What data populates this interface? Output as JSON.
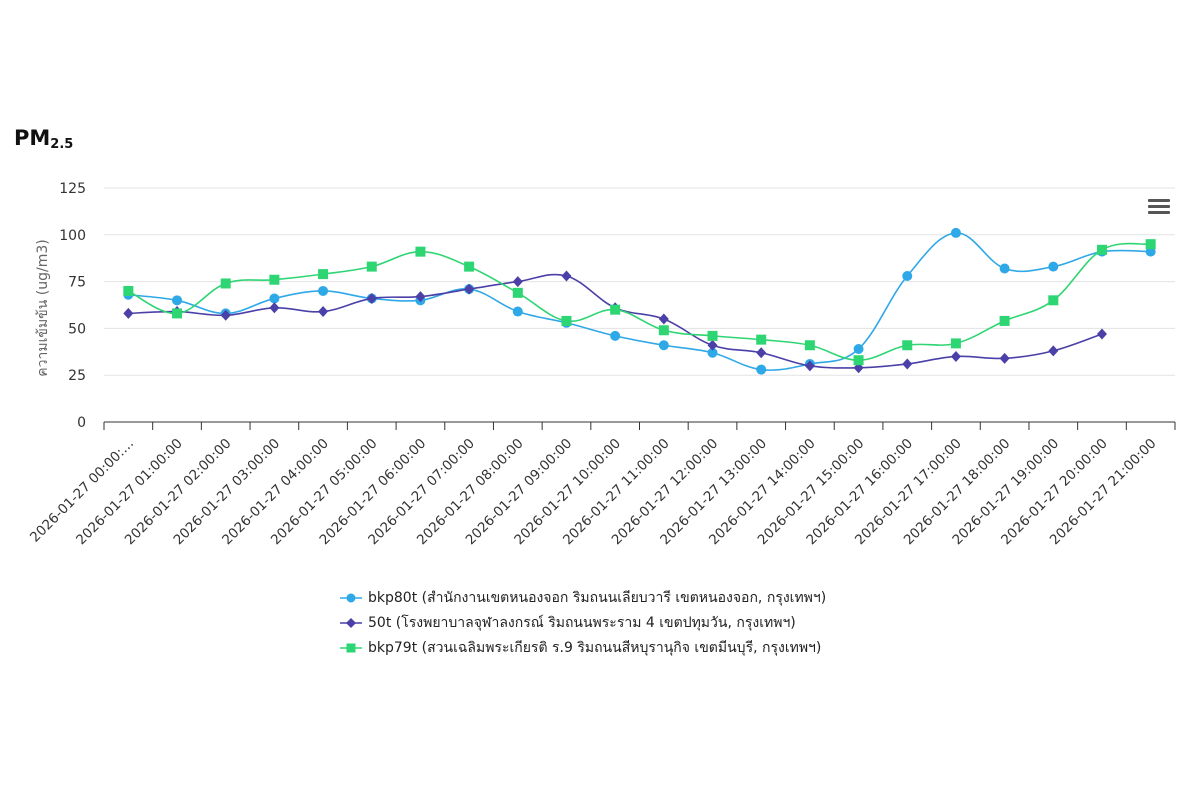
{
  "title": {
    "main": "PM",
    "sub": "2.5"
  },
  "menu": {
    "icon": "hamburger-menu-icon"
  },
  "chart_data": {
    "type": "line",
    "ylabel": "ความเข้มข้น (ug/m3)",
    "ylim": [
      0,
      125
    ],
    "yticks": [
      0,
      25,
      50,
      75,
      100,
      125
    ],
    "grid": true,
    "categories": [
      "2026-01-27 00:00:…",
      "2026-01-27 01:00:00",
      "2026-01-27 02:00:00",
      "2026-01-27 03:00:00",
      "2026-01-27 04:00:00",
      "2026-01-27 05:00:00",
      "2026-01-27 06:00:00",
      "2026-01-27 07:00:00",
      "2026-01-27 08:00:00",
      "2026-01-27 09:00:00",
      "2026-01-27 10:00:00",
      "2026-01-27 11:00:00",
      "2026-01-27 12:00:00",
      "2026-01-27 13:00:00",
      "2026-01-27 14:00:00",
      "2026-01-27 15:00:00",
      "2026-01-27 16:00:00",
      "2026-01-27 17:00:00",
      "2026-01-27 18:00:00",
      "2026-01-27 19:00:00",
      "2026-01-27 20:00:00",
      "2026-01-27 21:00:00"
    ],
    "series": [
      {
        "name": "bkp80t (สำนักงานเขตหนองจอก ริมถนนเลียบวารี เขตหนองจอก, กรุงเทพฯ)",
        "color": "#2fa8e8",
        "marker": "circle",
        "values": [
          68,
          65,
          58,
          66,
          70,
          66,
          65,
          71,
          59,
          53,
          46,
          41,
          37,
          28,
          31,
          39,
          78,
          101,
          82,
          83,
          91,
          91
        ]
      },
      {
        "name": "50t (โรงพยาบาลจุฬาลงกรณ์ ริมถนนพระราม 4 เขตปทุมวัน, กรุงเทพฯ)",
        "color": "#4b3fa8",
        "marker": "diamond",
        "values": [
          58,
          59,
          57,
          61,
          59,
          66,
          67,
          71,
          75,
          78,
          61,
          55,
          41,
          37,
          30,
          29,
          31,
          35,
          34,
          38,
          47,
          null
        ]
      },
      {
        "name": "bkp79t (สวนเฉลิมพระเกียรติ ร.9 ริมถนนสีหบุรานุกิจ เขตมีนบุรี, กรุงเทพฯ)",
        "color": "#2ed573",
        "marker": "square",
        "values": [
          70,
          58,
          74,
          76,
          79,
          83,
          91,
          83,
          69,
          54,
          60,
          49,
          46,
          44,
          41,
          33,
          41,
          42,
          54,
          65,
          92,
          95
        ]
      }
    ]
  }
}
